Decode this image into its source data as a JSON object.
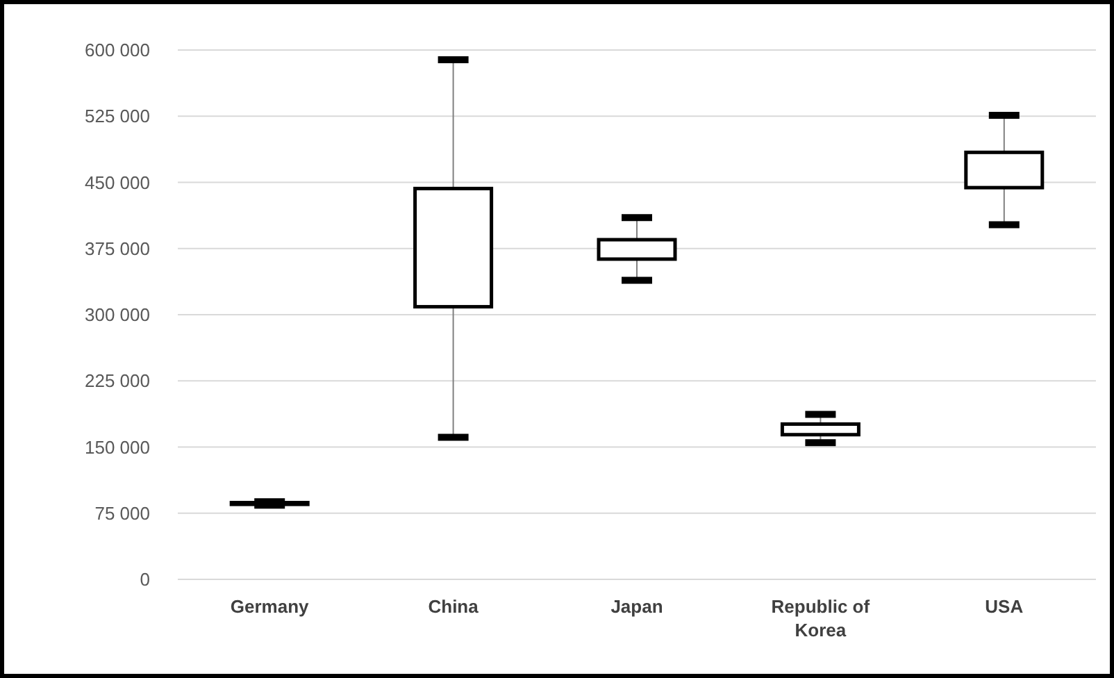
{
  "chart_data": {
    "type": "box",
    "categories": [
      "Germany",
      "China",
      "Japan",
      "Republic of Korea",
      "USA"
    ],
    "boxes": [
      {
        "low": 84000,
        "q1": 85000,
        "q3": 87000,
        "high": 88000
      },
      {
        "low": 161000,
        "q1": 309000,
        "q3": 443000,
        "high": 589000
      },
      {
        "low": 339000,
        "q1": 363000,
        "q3": 385000,
        "high": 410000
      },
      {
        "low": 155000,
        "q1": 164000,
        "q3": 176000,
        "high": 187000
      },
      {
        "low": 402000,
        "q1": 444000,
        "q3": 484000,
        "high": 526000
      }
    ],
    "color": "#000000",
    "ylim": [
      0,
      600000
    ],
    "yticks": [
      {
        "value": 0,
        "label": "0"
      },
      {
        "value": 75000,
        "label": "75 000"
      },
      {
        "value": 150000,
        "label": "150 000"
      },
      {
        "value": 225000,
        "label": "225 000"
      },
      {
        "value": 300000,
        "label": "300 000"
      },
      {
        "value": 375000,
        "label": "375 000"
      },
      {
        "value": 450000,
        "label": "450 000"
      },
      {
        "value": 525000,
        "label": "525 000"
      },
      {
        "value": 600000,
        "label": "600 000"
      }
    ],
    "grid": "y"
  }
}
